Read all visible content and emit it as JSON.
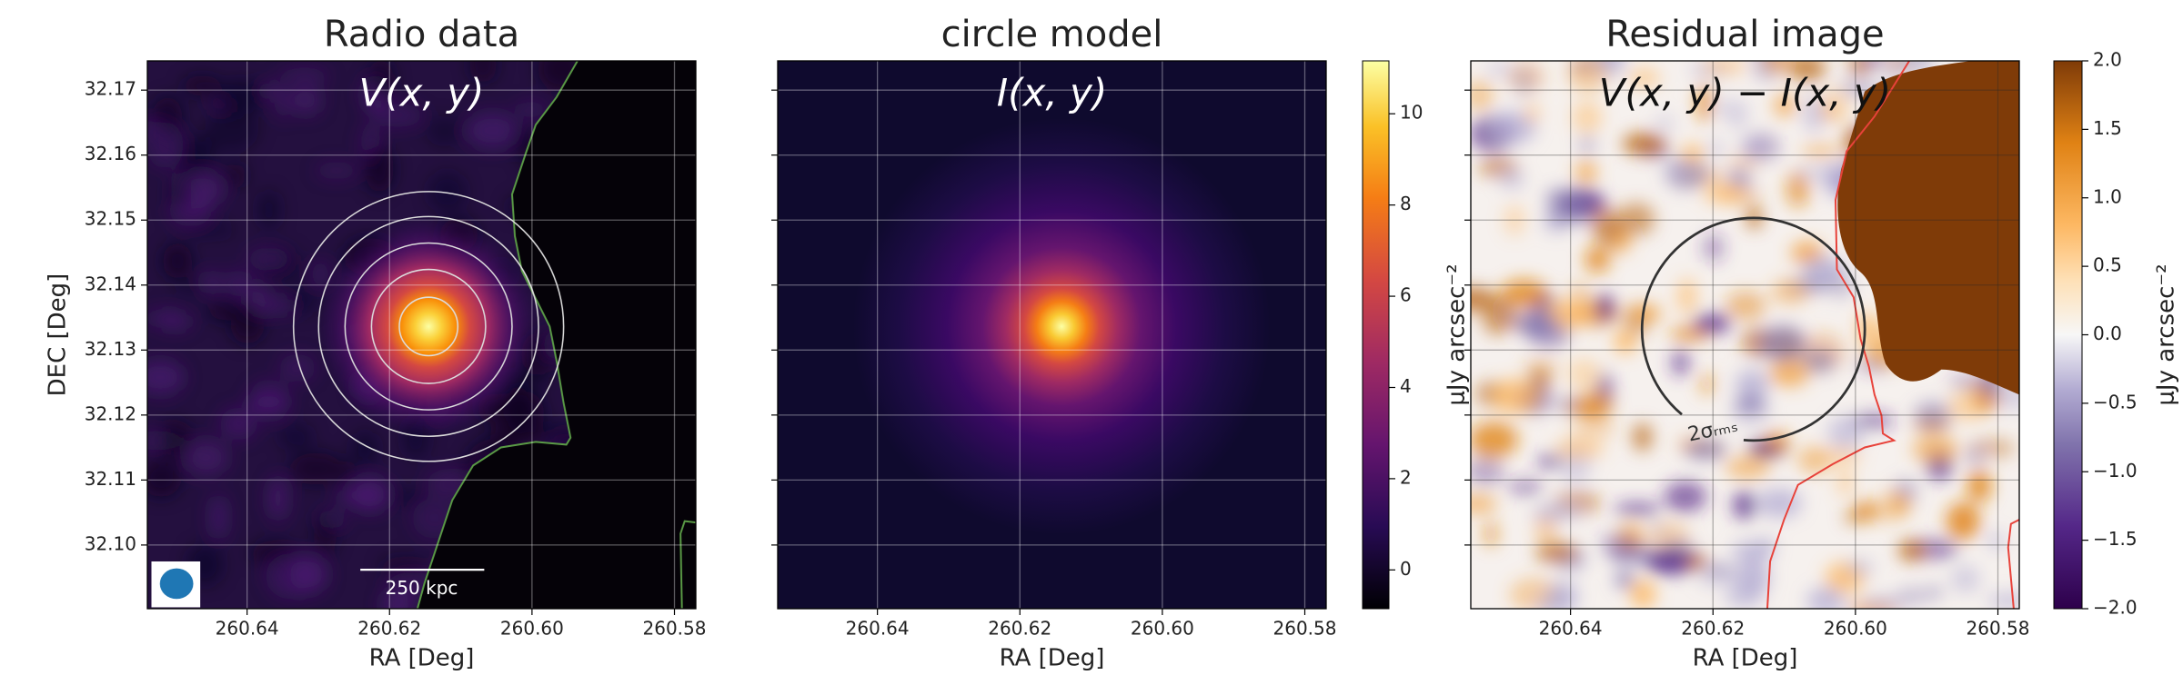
{
  "chart_data": [
    {
      "type": "heatmap",
      "title": "Radio data",
      "annotation": "V(x, y)",
      "scale_bar": "250 kpc",
      "xlabel": "RA [Deg]",
      "ylabel": "DEC [Deg]",
      "xlim": [
        260.654,
        260.577
      ],
      "ylim": [
        32.0902,
        32.1745
      ],
      "xticks": [
        260.64,
        260.62,
        {
          "value": 260.6,
          "label": "260.60"
        },
        260.58
      ],
      "yticks": [
        {
          "value": 32.1,
          "label": "32.10"
        },
        32.11,
        32.12,
        32.13,
        32.14,
        32.15,
        32.16,
        32.17
      ],
      "grid": true
    },
    {
      "type": "heatmap",
      "title": "circle model",
      "annotation": "I(x, y)",
      "xlabel": "RA [Deg]",
      "xlim": [
        260.654,
        260.577
      ],
      "ylim": [
        32.0902,
        32.1745
      ],
      "xticks": [
        260.64,
        260.62,
        {
          "value": 260.6,
          "label": "260.60"
        },
        260.58
      ],
      "grid": true,
      "colorbar": {
        "label": "μJy arcsec⁻²",
        "clim": [
          -0.85,
          11.16
        ],
        "ticks": [
          0,
          2,
          4,
          6,
          8,
          10
        ]
      }
    },
    {
      "type": "heatmap",
      "title": "Residual image",
      "annotation": "V(x, y) − I(x, y)",
      "contour_label": "2σᵣₘₛ",
      "xlabel": "RA [Deg]",
      "xlim": [
        260.654,
        260.577
      ],
      "ylim": [
        32.0902,
        32.1745
      ],
      "xticks": [
        260.64,
        260.62,
        {
          "value": 260.6,
          "label": "260.60"
        },
        260.58
      ],
      "grid": true,
      "colorbar": {
        "label": "μJy arcsec⁻²",
        "clim": [
          -2,
          2
        ],
        "ticks": [
          {
            "value": -2,
            "label": "−2.0"
          },
          {
            "value": -1.5,
            "label": "−1.5"
          },
          {
            "value": -1,
            "label": "−1.0"
          },
          {
            "value": -0.5,
            "label": "−0.5"
          },
          {
            "value": 0,
            "label": "0.0"
          },
          {
            "value": 0.5,
            "label": "0.5"
          },
          {
            "value": 1,
            "label": "1.0"
          },
          {
            "value": 1.5,
            "label": "1.5"
          },
          {
            "value": 2,
            "label": "2.0"
          }
        ]
      }
    }
  ]
}
